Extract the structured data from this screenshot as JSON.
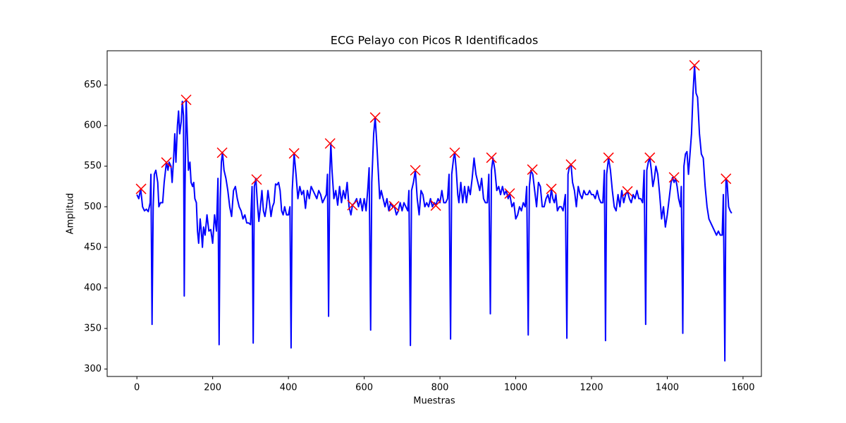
{
  "chart_data": {
    "type": "line",
    "title": "ECG Pelayo con Picos R Identificados",
    "x_label": "Muestras",
    "y_label": "Amplitud",
    "xlim": [
      -78.5,
      1648.5
    ],
    "xticks": [
      0,
      200,
      400,
      600,
      800,
      1000,
      1200,
      1400,
      1600
    ],
    "ylim": [
      290.8,
      692.3
    ],
    "yticks": [
      300,
      350,
      400,
      450,
      500,
      550,
      600,
      650
    ],
    "series": [
      {
        "color": "#0000ff",
        "marker": "none",
        "x": [
          0,
          5,
          10,
          15,
          20,
          25,
          30,
          35,
          37,
          40,
          43,
          46,
          50,
          55,
          58,
          62,
          68,
          72,
          78,
          82,
          85,
          90,
          93,
          97,
          100,
          103,
          107,
          110,
          113,
          117,
          120,
          123,
          125,
          127,
          130,
          133,
          136,
          140,
          143,
          147,
          150,
          153,
          157,
          160,
          163,
          167,
          170,
          173,
          176,
          180,
          185,
          190,
          195,
          200,
          205,
          210,
          214,
          217,
          220,
          223,
          226,
          230,
          235,
          240,
          245,
          250,
          255,
          260,
          265,
          270,
          275,
          280,
          285,
          290,
          295,
          300,
          304,
          307,
          310,
          314,
          318,
          322,
          326,
          330,
          334,
          338,
          342,
          346,
          350,
          354,
          358,
          362,
          366,
          370,
          374,
          378,
          382,
          386,
          390,
          395,
          400,
          404,
          407,
          410,
          415,
          420,
          425,
          430,
          435,
          440,
          445,
          450,
          455,
          460,
          465,
          470,
          475,
          480,
          485,
          490,
          495,
          500,
          503,
          506,
          509,
          512,
          515,
          520,
          525,
          530,
          535,
          540,
          545,
          550,
          555,
          560,
          565,
          569,
          575,
          580,
          585,
          590,
          595,
          600,
          605,
          610,
          613,
          617,
          620,
          625,
          629,
          633,
          637,
          641,
          645,
          650,
          655,
          660,
          665,
          670,
          675,
          680,
          685,
          690,
          695,
          700,
          705,
          710,
          715,
          718,
          722,
          725,
          730,
          735,
          740,
          745,
          750,
          755,
          760,
          765,
          770,
          775,
          780,
          785,
          789,
          795,
          800,
          805,
          810,
          815,
          820,
          824,
          828,
          831,
          836,
          839,
          843,
          847,
          850,
          855,
          860,
          865,
          870,
          875,
          880,
          885,
          890,
          895,
          900,
          905,
          910,
          915,
          920,
          925,
          929,
          933,
          936,
          940,
          945,
          950,
          955,
          960,
          965,
          970,
          975,
          980,
          984,
          990,
          995,
          1000,
          1005,
          1010,
          1015,
          1020,
          1025,
          1029,
          1033,
          1036,
          1040,
          1045,
          1050,
          1055,
          1060,
          1065,
          1070,
          1075,
          1080,
          1085,
          1090,
          1094,
          1098,
          1102,
          1106,
          1110,
          1115,
          1120,
          1125,
          1131,
          1135,
          1138,
          1142,
          1146,
          1150,
          1155,
          1160,
          1165,
          1170,
          1175,
          1180,
          1185,
          1190,
          1195,
          1200,
          1205,
          1210,
          1215,
          1220,
          1225,
          1230,
          1234,
          1237,
          1240,
          1245,
          1250,
          1255,
          1260,
          1265,
          1270,
          1275,
          1280,
          1285,
          1290,
          1295,
          1300,
          1305,
          1310,
          1315,
          1320,
          1325,
          1330,
          1335,
          1339,
          1343,
          1346,
          1350,
          1354,
          1358,
          1362,
          1366,
          1370,
          1375,
          1380,
          1385,
          1390,
          1395,
          1400,
          1405,
          1410,
          1414,
          1418,
          1422,
          1426,
          1430,
          1435,
          1437,
          1441,
          1444,
          1448,
          1452,
          1456,
          1460,
          1464,
          1468,
          1472,
          1476,
          1480,
          1485,
          1490,
          1495,
          1500,
          1505,
          1510,
          1515,
          1520,
          1525,
          1530,
          1535,
          1540,
          1545,
          1548,
          1552,
          1555,
          1558,
          1562,
          1566,
          1570
        ],
        "values": [
          515,
          510,
          522,
          500,
          495,
          497,
          494,
          505,
          540,
          355,
          500,
          540,
          545,
          530,
          500,
          505,
          505,
          530,
          555,
          545,
          555,
          550,
          530,
          560,
          590,
          555,
          600,
          618,
          590,
          605,
          630,
          612,
          390,
          520,
          632,
          590,
          545,
          555,
          530,
          525,
          530,
          510,
          505,
          470,
          455,
          485,
          470,
          450,
          475,
          465,
          490,
          470,
          472,
          455,
          490,
          470,
          535,
          330,
          510,
          555,
          567,
          545,
          535,
          520,
          500,
          488,
          520,
          525,
          510,
          500,
          495,
          485,
          490,
          480,
          480,
          478,
          525,
          332,
          525,
          535,
          505,
          482,
          500,
          520,
          495,
          488,
          500,
          520,
          505,
          488,
          500,
          505,
          528,
          527,
          530,
          520,
          495,
          490,
          500,
          490,
          490,
          500,
          326,
          520,
          566,
          540,
          510,
          525,
          515,
          520,
          498,
          520,
          510,
          525,
          520,
          515,
          510,
          520,
          515,
          505,
          510,
          515,
          540,
          365,
          540,
          578,
          545,
          510,
          520,
          502,
          525,
          505,
          520,
          510,
          530,
          500,
          490,
          502,
          505,
          510,
          500,
          510,
          495,
          510,
          495,
          525,
          548,
          348,
          530,
          590,
          610,
          580,
          545,
          510,
          520,
          510,
          500,
          510,
          495,
          505,
          500,
          500,
          490,
          495,
          505,
          495,
          505,
          500,
          495,
          520,
          329,
          520,
          530,
          545,
          510,
          490,
          520,
          515,
          500,
          505,
          500,
          510,
          500,
          505,
          502,
          510,
          505,
          520,
          505,
          505,
          510,
          540,
          337,
          540,
          560,
          567,
          545,
          515,
          505,
          530,
          505,
          525,
          505,
          525,
          515,
          535,
          560,
          540,
          530,
          520,
          535,
          510,
          505,
          505,
          540,
          368,
          545,
          560,
          545,
          520,
          525,
          515,
          525,
          515,
          520,
          510,
          516,
          500,
          505,
          485,
          490,
          500,
          495,
          505,
          500,
          525,
          342,
          525,
          545,
          540,
          520,
          500,
          530,
          525,
          500,
          500,
          510,
          515,
          505,
          522,
          510,
          505,
          515,
          495,
          500,
          500,
          495,
          515,
          338,
          540,
          550,
          552,
          530,
          520,
          500,
          525,
          515,
          510,
          520,
          515,
          515,
          520,
          515,
          515,
          510,
          520,
          510,
          505,
          505,
          545,
          335,
          540,
          560,
          545,
          520,
          500,
          495,
          515,
          500,
          520,
          505,
          515,
          519,
          510,
          505,
          515,
          510,
          520,
          510,
          510,
          505,
          545,
          355,
          545,
          555,
          560,
          545,
          525,
          535,
          550,
          540,
          515,
          485,
          500,
          475,
          490,
          510,
          530,
          536,
          530,
          535,
          525,
          510,
          500,
          525,
          344,
          550,
          565,
          568,
          540,
          565,
          590,
          640,
          674,
          640,
          635,
          590,
          565,
          560,
          525,
          500,
          485,
          480,
          475,
          470,
          465,
          470,
          465,
          465,
          515,
          310,
          534,
          530,
          500,
          495,
          492
        ]
      },
      {
        "color": "#ff0000",
        "marker": "x",
        "x": [
          11,
          78,
          130,
          225,
          316,
          415,
          510,
          569,
          629,
          679,
          735,
          789,
          839,
          936,
          984,
          1044,
          1094,
          1146,
          1245,
          1295,
          1354,
          1418,
          1472,
          1555
        ],
        "values": [
          522,
          554.5,
          631.8,
          566.6,
          533.6,
          565.8,
          578,
          502,
          610,
          500.6,
          545,
          501.5,
          566.6,
          560.5,
          516.3,
          545.8,
          522,
          552,
          560.5,
          519,
          560.5,
          536.2,
          674.3,
          534.5
        ]
      }
    ]
  }
}
